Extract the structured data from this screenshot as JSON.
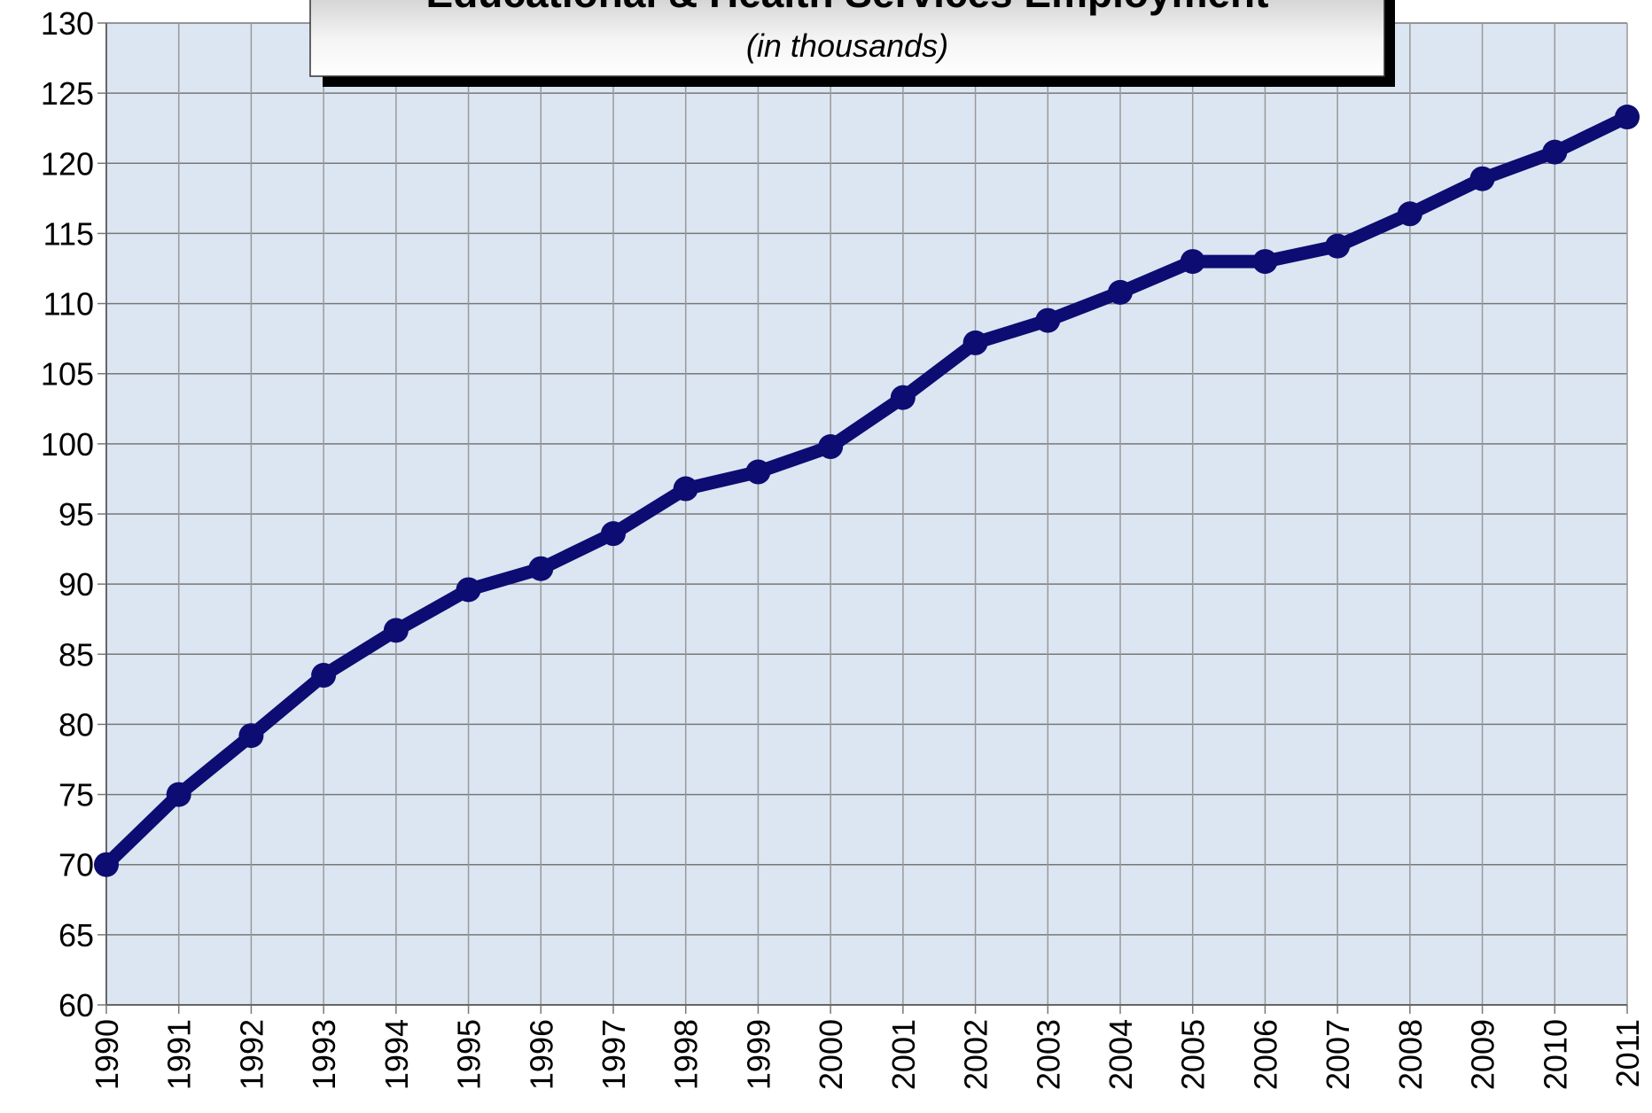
{
  "chart_data": {
    "type": "line",
    "title": "Educational & Health Services Employment",
    "subtitle": "(in thousands)",
    "categories": [
      "1990",
      "1991",
      "1992",
      "1993",
      "1994",
      "1995",
      "1996",
      "1997",
      "1998",
      "1999",
      "2000",
      "2001",
      "2002",
      "2003",
      "2004",
      "2005",
      "2006",
      "2007",
      "2008",
      "2009",
      "2010",
      "2011"
    ],
    "series": [
      {
        "name": "Educational & Health Services Employment",
        "color": "#0c0c72",
        "values": [
          70,
          75,
          79.2,
          83.5,
          86.7,
          89.6,
          91.1,
          93.6,
          96.8,
          98,
          99.8,
          103.3,
          107.2,
          108.8,
          110.8,
          113,
          113,
          114.1,
          116.4,
          118.9,
          120.8,
          123.3
        ]
      }
    ],
    "ylim": [
      60,
      130
    ],
    "yticks": [
      60,
      65,
      70,
      75,
      80,
      85,
      90,
      95,
      100,
      105,
      110,
      115,
      120,
      125,
      130
    ],
    "grid": true,
    "plot_background": "#dce6f2"
  }
}
